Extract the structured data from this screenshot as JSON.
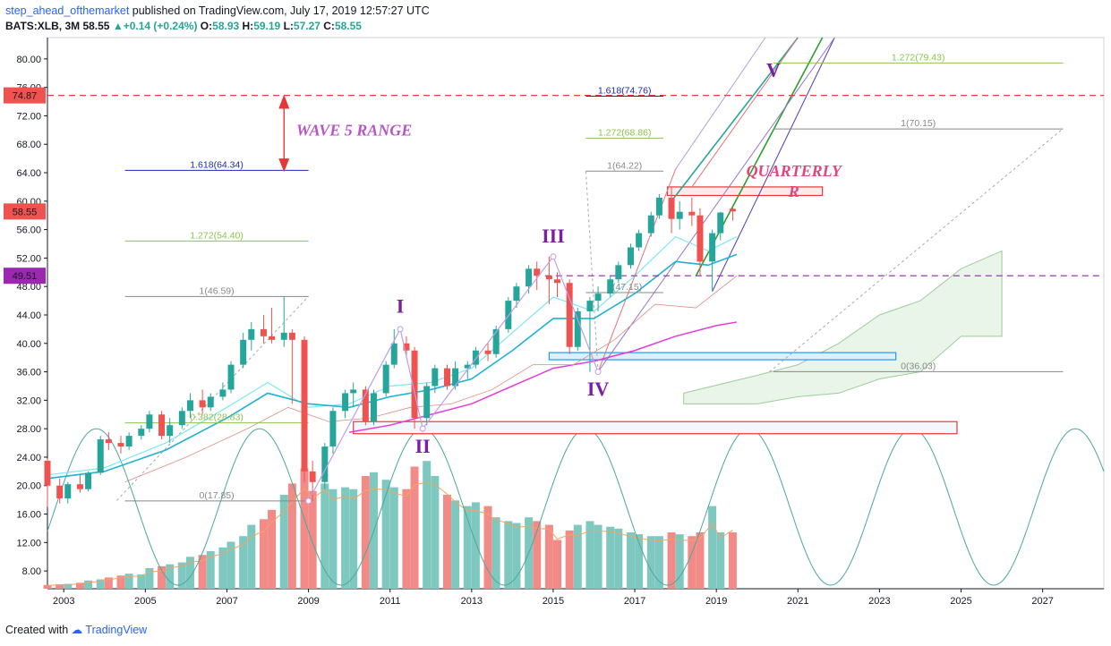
{
  "header": {
    "author": "step_ahead_ofthemarket",
    "published": "published on TradingView.com, July 17, 2019 12:57:27 UTC",
    "symbol": "BATS:XLB, 3M",
    "last": "58.55",
    "change": "+0.14 (+0.24%)",
    "o_label": "O:",
    "o_value": "58.93",
    "h_label": "H:",
    "h_value": "59.19",
    "l_label": "L:",
    "l_value": "57.27",
    "c_label": "C:",
    "c_value": "58.55"
  },
  "footer": {
    "created": "Created with",
    "brand": "TradingView"
  },
  "colors": {
    "up": "#26a69a",
    "down": "#ef5350",
    "vol_up": "#7fc8c0",
    "vol_down": "#f28b87",
    "ema_fast": "#7fe7f5",
    "ema_mid": "#1fb1d6",
    "ema_slow": "#e53ad8",
    "cycle": "#4aa89c",
    "red_dash": "#ef3a3a",
    "purple_dash": "#8e24aa",
    "fib_blue": "#1a2bb5",
    "fib_green": "#8bc34a",
    "fib_gray": "#888888",
    "wave": "#7b1fa2",
    "pink": "#e5467a"
  },
  "chart_data": {
    "type": "candlestick",
    "timeframe": "3M",
    "y_ticks": [
      "80.00",
      "76.00",
      "72.00",
      "68.00",
      "64.00",
      "60.00",
      "56.00",
      "52.00",
      "48.00",
      "44.00",
      "40.00",
      "36.00",
      "32.00",
      "28.00",
      "24.00",
      "20.00",
      "16.00",
      "12.00",
      "8.00"
    ],
    "x_ticks": [
      "2003",
      "2005",
      "2007",
      "2009",
      "2011",
      "2013",
      "2015",
      "2017",
      "2019",
      "2021",
      "2023",
      "2025",
      "2027"
    ],
    "ylim": [
      5.5,
      83.0
    ],
    "xlim": [
      2002.6,
      2028.5
    ],
    "price_badges": [
      {
        "value": 74.87,
        "label": "74.87",
        "color": "#ef5350"
      },
      {
        "value": 58.55,
        "label": "58.55",
        "color": "#ef5350"
      },
      {
        "value": 49.51,
        "label": "49.51",
        "color": "#9c27b0"
      }
    ],
    "candles": [
      [
        2002.6,
        23.5,
        23.8,
        17.0,
        20.0
      ],
      [
        2002.9,
        20.0,
        21.0,
        17.5,
        18.2
      ],
      [
        2003.1,
        18.2,
        20.5,
        17.5,
        20.2
      ],
      [
        2003.4,
        20.2,
        21.5,
        19.0,
        19.5
      ],
      [
        2003.6,
        19.5,
        22.0,
        19.2,
        21.8
      ],
      [
        2003.9,
        21.8,
        27.0,
        21.5,
        26.5
      ],
      [
        2004.1,
        26.5,
        27.5,
        25.0,
        26.0
      ],
      [
        2004.4,
        26.0,
        27.0,
        24.5,
        25.5
      ],
      [
        2004.6,
        25.5,
        27.5,
        25.0,
        27.0
      ],
      [
        2004.9,
        27.0,
        28.5,
        26.5,
        28.0
      ],
      [
        2005.1,
        28.0,
        30.5,
        27.5,
        30.0
      ],
      [
        2005.4,
        30.0,
        30.5,
        26.5,
        27.0
      ],
      [
        2005.6,
        27.0,
        29.5,
        26.0,
        28.5
      ],
      [
        2005.9,
        28.5,
        31.0,
        28.0,
        30.5
      ],
      [
        2006.1,
        30.5,
        33.0,
        29.5,
        32.0
      ],
      [
        2006.4,
        32.0,
        33.5,
        30.0,
        31.0
      ],
      [
        2006.6,
        31.0,
        33.0,
        30.5,
        32.5
      ],
      [
        2006.9,
        32.5,
        34.5,
        32.0,
        33.5
      ],
      [
        2007.1,
        33.5,
        37.5,
        33.0,
        37.0
      ],
      [
        2007.4,
        37.0,
        41.5,
        36.5,
        40.5
      ],
      [
        2007.6,
        40.5,
        43.0,
        39.0,
        42.0
      ],
      [
        2007.9,
        42.0,
        44.0,
        40.0,
        41.0
      ],
      [
        2008.1,
        41.0,
        45.0,
        40.0,
        40.5
      ],
      [
        2008.4,
        40.5,
        46.6,
        39.5,
        41.5
      ],
      [
        2008.6,
        41.5,
        42.0,
        31.5,
        40.5
      ],
      [
        2008.9,
        40.5,
        41.0,
        20.5,
        22.0
      ],
      [
        2009.1,
        22.0,
        23.5,
        17.85,
        20.5
      ],
      [
        2009.4,
        20.5,
        26.0,
        19.5,
        25.5
      ],
      [
        2009.6,
        25.5,
        31.0,
        24.5,
        30.5
      ],
      [
        2009.9,
        30.5,
        33.5,
        29.5,
        33.0
      ],
      [
        2010.1,
        33.0,
        34.5,
        31.0,
        33.5
      ],
      [
        2010.4,
        33.5,
        34.0,
        28.5,
        29.0
      ],
      [
        2010.6,
        29.0,
        33.5,
        28.5,
        33.0
      ],
      [
        2010.9,
        33.0,
        37.5,
        32.5,
        37.0
      ],
      [
        2011.1,
        37.0,
        42.0,
        36.5,
        40.0
      ],
      [
        2011.4,
        40.0,
        41.0,
        38.0,
        39.0
      ],
      [
        2011.6,
        39.0,
        39.5,
        28.0,
        29.5
      ],
      [
        2011.9,
        29.5,
        34.5,
        28.5,
        34.0
      ],
      [
        2012.1,
        34.0,
        37.0,
        33.0,
        36.5
      ],
      [
        2012.4,
        36.5,
        37.0,
        33.5,
        34.0
      ],
      [
        2012.6,
        34.0,
        37.5,
        33.5,
        36.5
      ],
      [
        2012.9,
        36.5,
        37.5,
        35.0,
        37.0
      ],
      [
        2013.1,
        37.0,
        39.5,
        36.5,
        39.0
      ],
      [
        2013.4,
        39.0,
        40.0,
        37.5,
        38.5
      ],
      [
        2013.6,
        38.5,
        42.5,
        38.0,
        42.0
      ],
      [
        2013.9,
        42.0,
        46.5,
        41.5,
        46.0
      ],
      [
        2014.1,
        46.0,
        48.5,
        45.0,
        48.0
      ],
      [
        2014.4,
        48.0,
        51.0,
        47.0,
        50.5
      ],
      [
        2014.6,
        50.5,
        51.5,
        47.5,
        49.5
      ],
      [
        2014.9,
        49.5,
        52.2,
        45.5,
        49.0
      ],
      [
        2015.1,
        49.0,
        50.0,
        46.5,
        48.5
      ],
      [
        2015.4,
        48.5,
        49.0,
        38.5,
        39.5
      ],
      [
        2015.6,
        39.5,
        45.0,
        39.0,
        44.5
      ],
      [
        2015.9,
        44.5,
        46.5,
        36.0,
        46.0
      ],
      [
        2016.1,
        46.0,
        48.0,
        44.5,
        47.0
      ],
      [
        2016.4,
        47.0,
        49.5,
        46.5,
        49.0
      ],
      [
        2016.6,
        49.0,
        51.5,
        48.5,
        51.0
      ],
      [
        2016.9,
        51.0,
        54.0,
        50.5,
        53.5
      ],
      [
        2017.1,
        53.5,
        56.0,
        53.0,
        55.5
      ],
      [
        2017.4,
        55.5,
        58.5,
        55.0,
        58.0
      ],
      [
        2017.6,
        58.0,
        61.0,
        57.5,
        60.5
      ],
      [
        2017.9,
        60.5,
        62.0,
        55.5,
        57.5
      ],
      [
        2018.1,
        57.5,
        60.0,
        56.0,
        58.5
      ],
      [
        2018.4,
        58.5,
        60.5,
        56.5,
        58.0
      ],
      [
        2018.6,
        58.0,
        59.0,
        49.5,
        51.5
      ],
      [
        2018.9,
        51.5,
        56.0,
        47.3,
        55.5
      ],
      [
        2019.1,
        55.5,
        58.5,
        54.5,
        58.4
      ],
      [
        2019.4,
        58.93,
        59.19,
        57.27,
        58.55
      ]
    ],
    "volume_note": "volume bars shown at bottom, colored by candle direction",
    "levels": [
      {
        "label": "1.618(64.34)",
        "value": 64.34,
        "x1": 2004.5,
        "x2": 2009.0,
        "color": "#1a2bb5"
      },
      {
        "label": "1.272(54.40)",
        "value": 54.4,
        "x1": 2004.5,
        "x2": 2009.0,
        "color": "#8bc34a"
      },
      {
        "label": "1(46.59)",
        "value": 46.59,
        "x1": 2004.5,
        "x2": 2009.0,
        "color": "#888888"
      },
      {
        "label": "0.382(28.83)",
        "value": 28.83,
        "x1": 2004.5,
        "x2": 2009.0,
        "color": "#8bc34a"
      },
      {
        "label": "0(17.85)",
        "value": 17.85,
        "x1": 2004.5,
        "x2": 2009.0,
        "color": "#888888"
      },
      {
        "label": "1.618(74.76)",
        "value": 74.76,
        "x1": 2015.8,
        "x2": 2017.7,
        "color": "#1a2bb5"
      },
      {
        "label": "1.272(68.86)",
        "value": 68.86,
        "x1": 2015.8,
        "x2": 2017.7,
        "color": "#8bc34a"
      },
      {
        "label": "1(64.22)",
        "value": 64.22,
        "x1": 2015.8,
        "x2": 2017.7,
        "color": "#888888"
      },
      {
        "label": "0(47.15)",
        "value": 47.15,
        "x1": 2015.8,
        "x2": 2017.7,
        "color": "#888888"
      },
      {
        "label": "1.272(79.43)",
        "value": 79.43,
        "x1": 2020.4,
        "x2": 2027.5,
        "color": "#8bc34a"
      },
      {
        "label": "1(70.15)",
        "value": 70.15,
        "x1": 2020.4,
        "x2": 2027.5,
        "color": "#888888"
      },
      {
        "label": "0(36.03)",
        "value": 36.03,
        "x1": 2020.4,
        "x2": 2027.5,
        "color": "#888888"
      }
    ],
    "annotations": {
      "wave5_range": "WAVE 5 RANGE",
      "quarterly_r1": "QUARTERLY",
      "quarterly_r2": "R",
      "waves": [
        {
          "label": "I",
          "x": 2011.25,
          "y": 44.3
        },
        {
          "label": "II",
          "x": 2011.8,
          "y": 24.6
        },
        {
          "label": "III",
          "x": 2015.0,
          "y": 54.2
        },
        {
          "label": "IV",
          "x": 2016.1,
          "y": 32.7
        },
        {
          "label": "V",
          "x": 2020.4,
          "y": 77.5
        }
      ]
    }
  }
}
